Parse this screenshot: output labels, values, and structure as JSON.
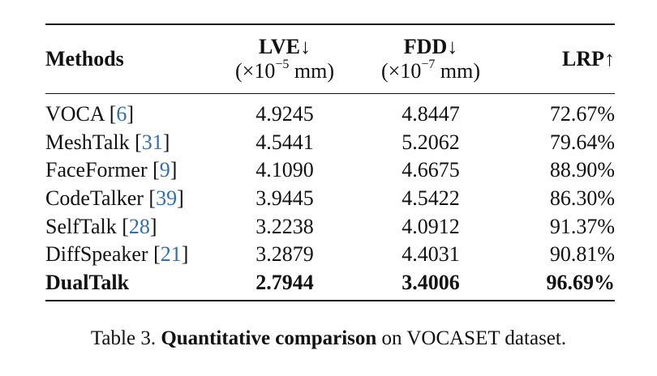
{
  "table": {
    "headers": {
      "methods": "Methods",
      "lve": "LVE↓",
      "lve_unit_prefix": "(×10",
      "lve_unit_exp": "−5",
      "lve_unit_suffix": " mm)",
      "fdd": "FDD↓",
      "fdd_unit_prefix": "(×10",
      "fdd_unit_exp": "−7",
      "fdd_unit_suffix": " mm)",
      "lrp": "LRP↑"
    },
    "rows": [
      {
        "method": "VOCA",
        "ref": "6",
        "lve": "4.9245",
        "fdd": "4.8447",
        "lrp": "72.67%"
      },
      {
        "method": "MeshTalk",
        "ref": "31",
        "lve": "4.5441",
        "fdd": "5.2062",
        "lrp": "79.64%"
      },
      {
        "method": "FaceFormer",
        "ref": "9",
        "lve": "4.1090",
        "fdd": "4.6675",
        "lrp": "88.90%"
      },
      {
        "method": "CodeTalker",
        "ref": "39",
        "lve": "3.9445",
        "fdd": "4.5422",
        "lrp": "86.30%"
      },
      {
        "method": "SelfTalk",
        "ref": "28",
        "lve": "3.2238",
        "fdd": "4.0912",
        "lrp": "91.37%"
      },
      {
        "method": "DiffSpeaker",
        "ref": "21",
        "lve": "3.2879",
        "fdd": "4.4031",
        "lrp": "90.81%"
      }
    ],
    "best_row": {
      "method": "DualTalk",
      "lve": "2.7944",
      "fdd": "3.4006",
      "lrp": "96.69%"
    }
  },
  "caption": {
    "prefix": "Table 3. ",
    "bold": "Quantitative comparison",
    "suffix": " on VOCASET dataset."
  },
  "colors": {
    "reference_link": "#2f6fb0",
    "text": "#111111"
  }
}
